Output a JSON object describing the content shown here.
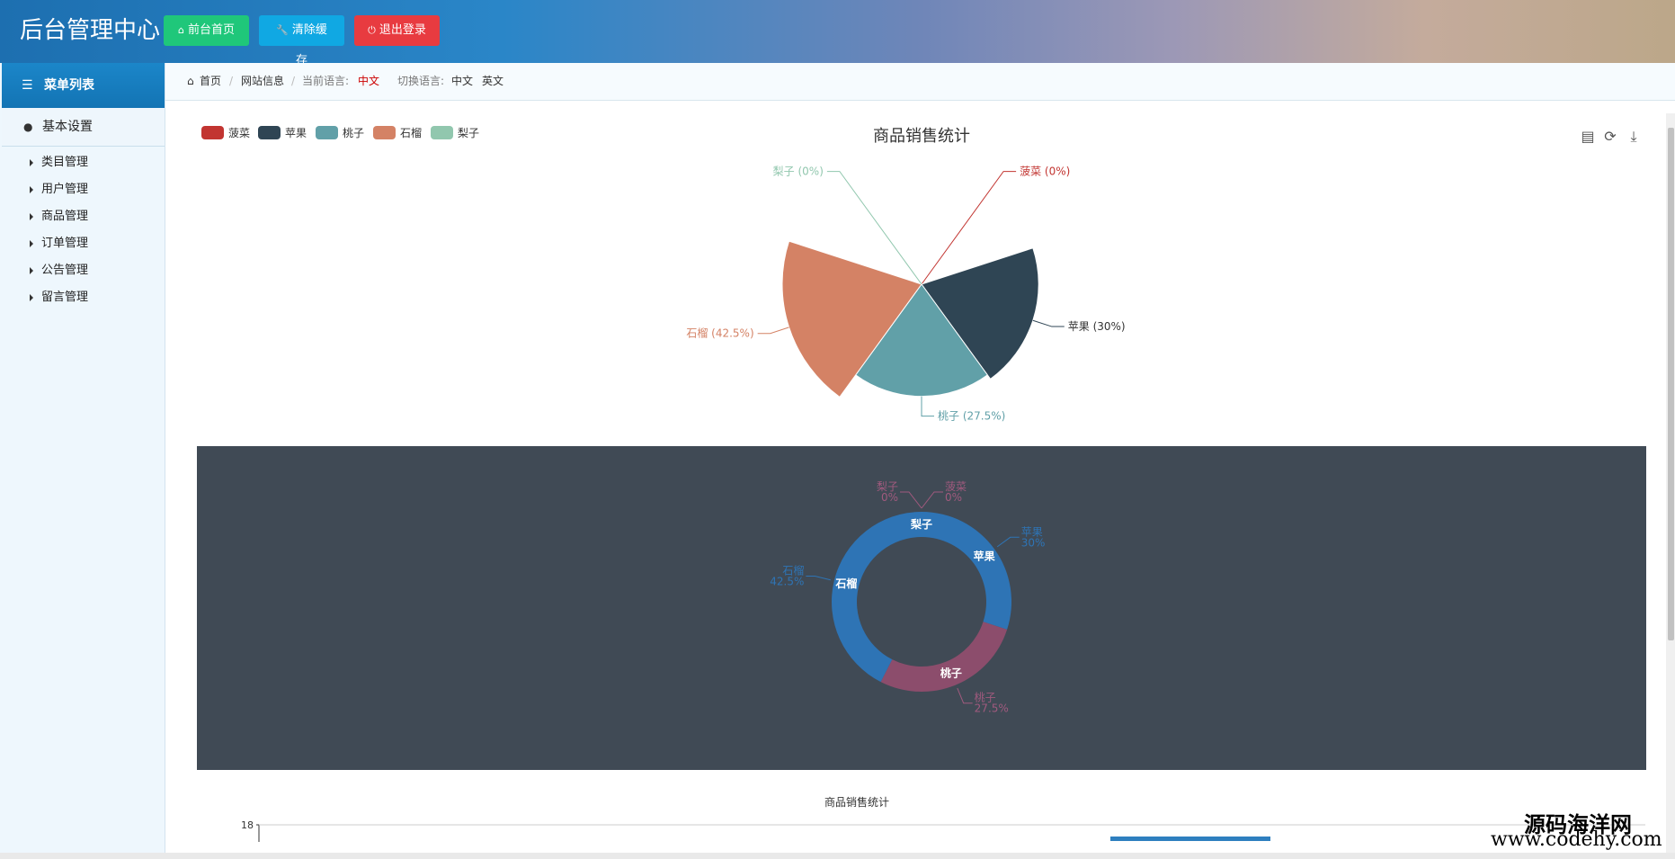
{
  "header": {
    "title": "后台管理中心",
    "buttons": {
      "front_home": "前台首页",
      "clear_cache": "清除缓存",
      "logout": "退出登录"
    }
  },
  "sidebar": {
    "menu_title": "菜单列表",
    "section": "基本设置",
    "items": [
      {
        "label": "类目管理"
      },
      {
        "label": "用户管理"
      },
      {
        "label": "商品管理"
      },
      {
        "label": "订单管理"
      },
      {
        "label": "公告管理"
      },
      {
        "label": "留言管理"
      }
    ]
  },
  "breadcrumb": {
    "home": "首页",
    "site_info": "网站信息",
    "current_lang_label": "当前语言:",
    "current_lang": "中文",
    "switch_lang_label": "切换语言:",
    "lang_zh": "中文",
    "lang_en": "英文"
  },
  "colors": {
    "菠菜": "#c23531",
    "苹果": "#2f4554",
    "桃子": "#61a0a8",
    "石榴": "#d48265",
    "梨子": "#91c7ae",
    "donut_blue": "#2e74b5",
    "donut_pink": "#8c4d6c"
  },
  "chart_data": [
    {
      "type": "pie",
      "subtype": "rose",
      "title": "商品销售统计",
      "legend": [
        "菠菜",
        "苹果",
        "桃子",
        "石榴",
        "梨子"
      ],
      "legend_position": "top-left",
      "toolbox": [
        "data-view-icon",
        "restore-icon",
        "save-image-icon"
      ],
      "slices": [
        {
          "name": "菠菜",
          "label": "菠菜 (0%)",
          "percent": 0
        },
        {
          "name": "苹果",
          "label": "苹果 (30%)",
          "percent": 30
        },
        {
          "name": "桃子",
          "label": "桃子 (27.5%)",
          "percent": 27.5
        },
        {
          "name": "石榴",
          "label": "石榴 (42.5%)",
          "percent": 42.5
        },
        {
          "name": "梨子",
          "label": "梨子 (0%)",
          "percent": 0
        }
      ]
    },
    {
      "type": "pie",
      "subtype": "donut",
      "background": "#404a55",
      "slices": [
        {
          "name": "菠菜",
          "percent_label": "0%",
          "percent": 0,
          "color": "donut_blue"
        },
        {
          "name": "苹果",
          "percent_label": "30%",
          "percent": 30,
          "color": "donut_blue"
        },
        {
          "name": "桃子",
          "percent_label": "27.5%",
          "percent": 27.5,
          "color": "donut_pink"
        },
        {
          "name": "石榴",
          "percent_label": "42.5%",
          "percent": 42.5,
          "color": "donut_blue"
        },
        {
          "name": "梨子",
          "percent_label": "0%",
          "percent": 0,
          "color": "donut_blue"
        }
      ]
    },
    {
      "type": "bar",
      "title": "商品销售统计",
      "y_ticks": [
        "18"
      ],
      "partially_visible": true
    }
  ],
  "watermark": {
    "cn": "源码海洋网",
    "url": "www.codehy.com"
  }
}
